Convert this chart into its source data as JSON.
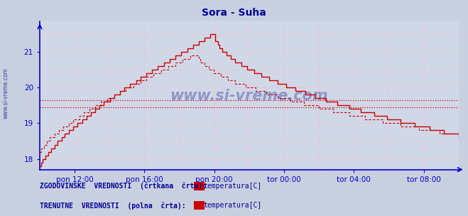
{
  "title": "Sora - Suha",
  "title_color": "#000099",
  "bg_color": "#c8d0e0",
  "plot_bg_color": "#d0d8e8",
  "grid_color": "#ffb0b0",
  "axis_color": "#0000cc",
  "line_color": "#cc0000",
  "hline_color": "#cc0000",
  "hline_y1": 19.65,
  "hline_y2": 19.45,
  "ylim_min": 17.7,
  "ylim_max": 21.85,
  "yticks": [
    18,
    19,
    20,
    21
  ],
  "xlabel_color": "#000099",
  "watermark": "www.si-vreme.com",
  "watermark_color": "#000080",
  "legend_text1": "ZGODOVINSKE  VREDNOSTI  (črtkana  črta):",
  "legend_text2": "TRENUTNE  VREDNOSTI  (polna  črta):",
  "legend_label": "temperatura[C]",
  "legend_color": "#000099",
  "xtick_labels": [
    "pon 12:00",
    "pon 16:00",
    "pon 20:00",
    "tor 00:00",
    "tor 04:00",
    "tor 08:00"
  ],
  "left_label": "www.si-vreme.com"
}
